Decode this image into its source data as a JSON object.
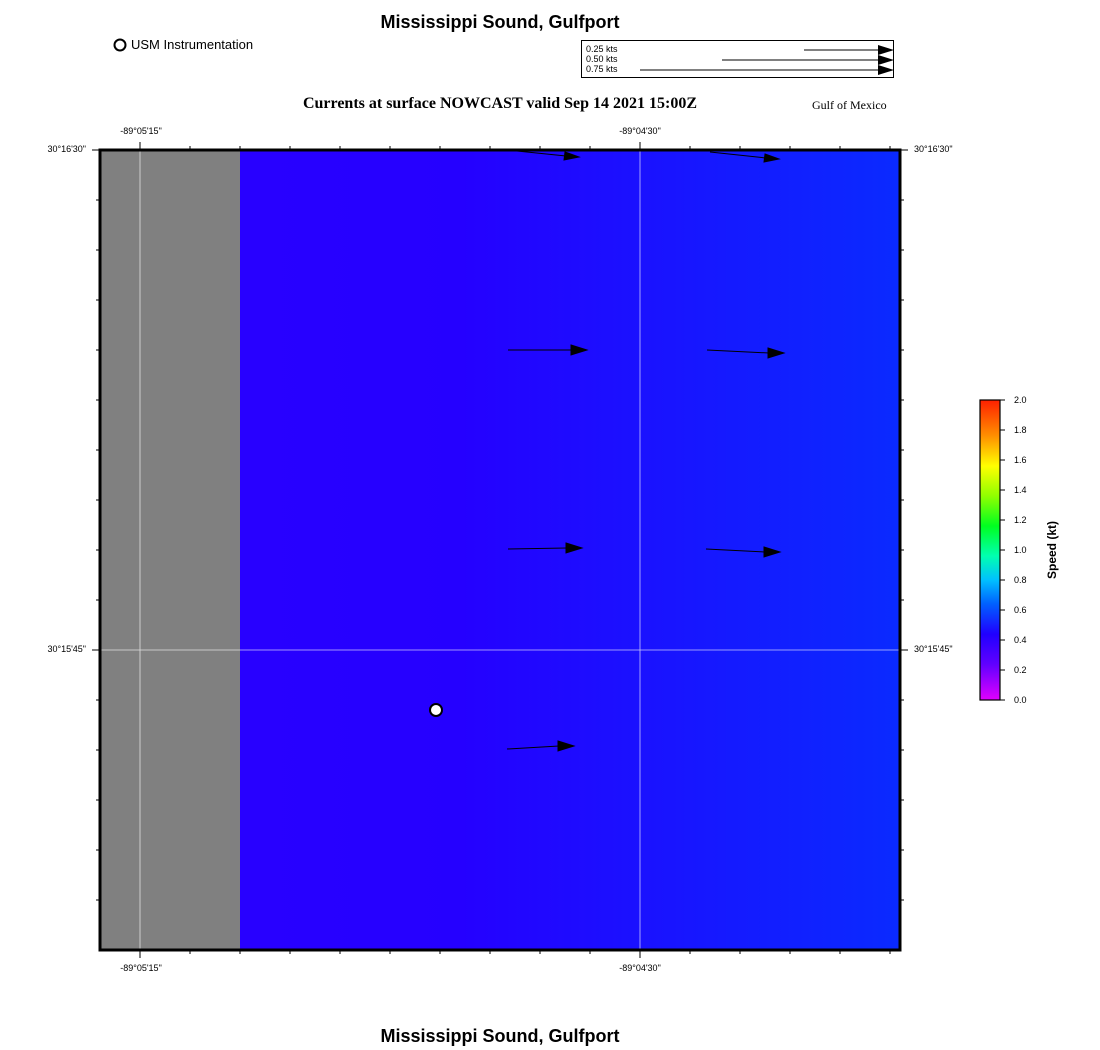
{
  "header": {
    "title": "Mississippi Sound, Gulfport",
    "subtitle": "Currents at surface NOWCAST valid Sep 14 2021 15:00Z",
    "region": "Gulf of Mexico",
    "footer_title": "Mississippi Sound, Gulfport"
  },
  "legend": {
    "station_label": "USM Instrumentation"
  },
  "vector_scale": {
    "entries": [
      {
        "label": "0.25 kts",
        "speed": 0.25
      },
      {
        "label": "0.50 kts",
        "speed": 0.5
      },
      {
        "label": "0.75 kts",
        "speed": 0.75
      }
    ]
  },
  "axes": {
    "lon_labels": [
      "-89°05'15\"",
      "-89°04'30\""
    ],
    "lat_labels": [
      "30°16'30\"",
      "30°15'45\""
    ]
  },
  "colorbar": {
    "title": "Speed (kt)",
    "ticks": [
      "2.0",
      "1.8",
      "1.6",
      "1.4",
      "1.2",
      "1.0",
      "0.8",
      "0.6",
      "0.4",
      "0.2",
      "0.0"
    ],
    "min": 0.0,
    "max": 2.0
  },
  "colors": {
    "land": "#808080",
    "water_west": "#2a00ff",
    "water_east": "#0a2aff",
    "station_fill": "#ffffff"
  }
}
